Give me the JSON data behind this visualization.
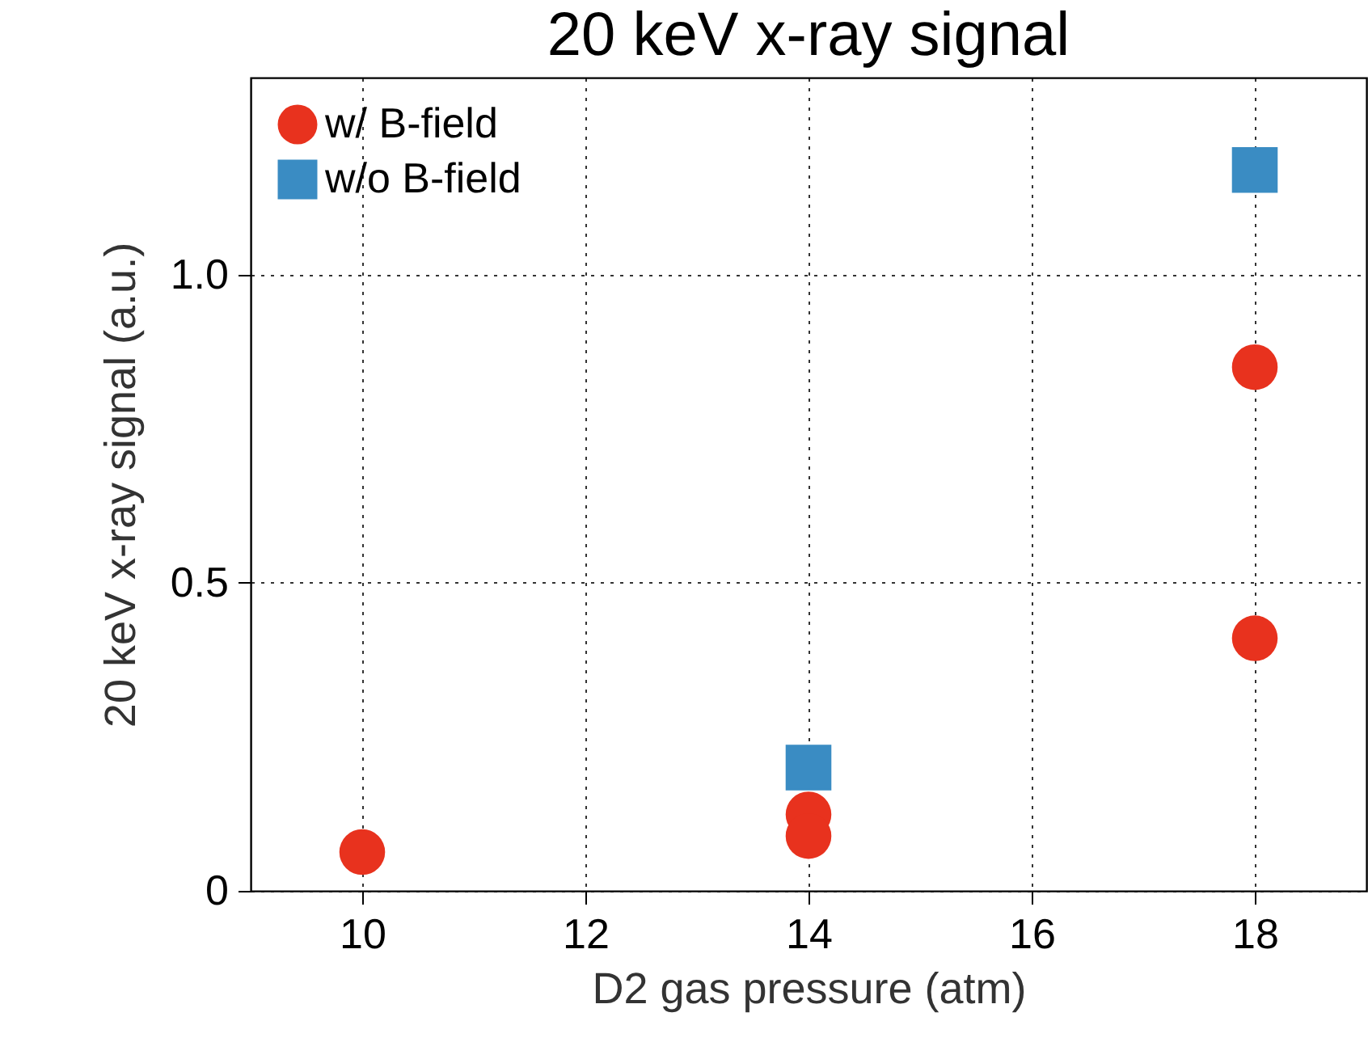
{
  "chart_data": {
    "type": "scatter",
    "title": "20 keV x-ray signal",
    "xlabel": "D2 gas pressure (atm)",
    "ylabel": "20 keV x-ray signal (a.u.)",
    "xlim": [
      9,
      19
    ],
    "xticks": [
      10,
      12,
      14,
      16,
      18
    ],
    "ylim": [
      0,
      1.32
    ],
    "yticks": [
      0,
      0.5,
      {
        "value": 1,
        "label": "1.0"
      }
    ],
    "grid": true,
    "legend": "top left",
    "series": [
      {
        "name": "w/ B-field",
        "color": "#e8321e",
        "marker": "circle",
        "x": [
          10,
          14,
          14,
          18,
          18
        ],
        "values": [
          0.063,
          0.124,
          0.089,
          0.85,
          0.41
        ]
      },
      {
        "name": "w/o B-field",
        "color": "#3a8cc3",
        "marker": "square",
        "x": [
          14,
          18
        ],
        "values": [
          0.2,
          1.17
        ]
      }
    ]
  }
}
